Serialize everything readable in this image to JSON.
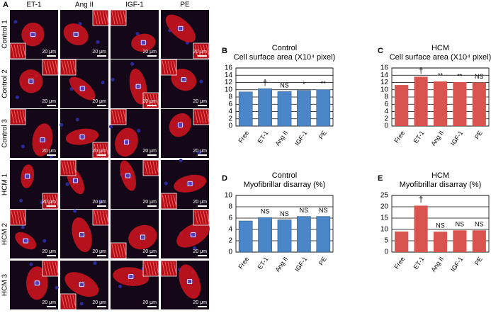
{
  "panel_a": {
    "panel": "A",
    "columns": [
      "ET-1",
      "Ang II",
      "IGF-1",
      "PE"
    ],
    "rows": [
      "Control 1",
      "Control 2",
      "Control 3",
      "HCM 1",
      "HCM 2",
      "HCM 3"
    ],
    "scale_bar": "20 μm"
  },
  "chart_data": [
    {
      "type": "bar",
      "panel": "B",
      "title": "Control",
      "subtitle": "Cell surface area (X10⁴ pixel)",
      "categories": [
        "Free",
        "ET-1",
        "Ang II",
        "IGF-1",
        "PE"
      ],
      "values": [
        9.4,
        10.3,
        9.5,
        9.8,
        10.0
      ],
      "annotations": [
        null,
        "†",
        "NS",
        "*",
        "**"
      ],
      "color": "#4a86c8",
      "ylim": [
        0,
        16
      ],
      "yticks": [
        0,
        2,
        4,
        6,
        8,
        10,
        12,
        14,
        16
      ],
      "grid": true
    },
    {
      "type": "bar",
      "panel": "C",
      "title": "HCM",
      "subtitle": "Cell surface area (X10⁴ pixel)",
      "categories": [
        "Free",
        "ET-1",
        "Ang II",
        "IGF-1",
        "PE"
      ],
      "values": [
        11.3,
        13.6,
        12.3,
        12.1,
        12.0
      ],
      "annotations": [
        null,
        "†",
        "**",
        "**",
        "NS"
      ],
      "color": "#d9534f",
      "ylim": [
        0,
        16
      ],
      "yticks": [
        0,
        2,
        4,
        6,
        8,
        10,
        12,
        14,
        16
      ],
      "grid": true
    },
    {
      "type": "bar",
      "panel": "D",
      "title": "Control",
      "subtitle": "Myofibrillar disarray (%)",
      "categories": [
        "Free",
        "ET-1",
        "Ang II",
        "IGF-1",
        "PE"
      ],
      "values": [
        5.5,
        6.1,
        5.7,
        6.3,
        6.3
      ],
      "annotations": [
        null,
        "NS",
        "NS",
        "NS",
        "NS"
      ],
      "color": "#4a86c8",
      "ylim": [
        0,
        10
      ],
      "yticks": [
        0,
        2,
        4,
        6,
        8,
        10
      ],
      "grid": true
    },
    {
      "type": "bar",
      "panel": "E",
      "title": "HCM",
      "subtitle": "Myofibrillar disarray (%)",
      "categories": [
        "Free",
        "ET-1",
        "Ang II",
        "IGF-1",
        "PE"
      ],
      "values": [
        9.1,
        20.5,
        9.0,
        9.6,
        9.6
      ],
      "annotations": [
        null,
        "†",
        "NS",
        "NS",
        "NS"
      ],
      "color": "#d9534f",
      "ylim": [
        0,
        25
      ],
      "yticks": [
        0,
        5,
        10,
        15,
        20,
        25
      ],
      "grid": true
    }
  ]
}
